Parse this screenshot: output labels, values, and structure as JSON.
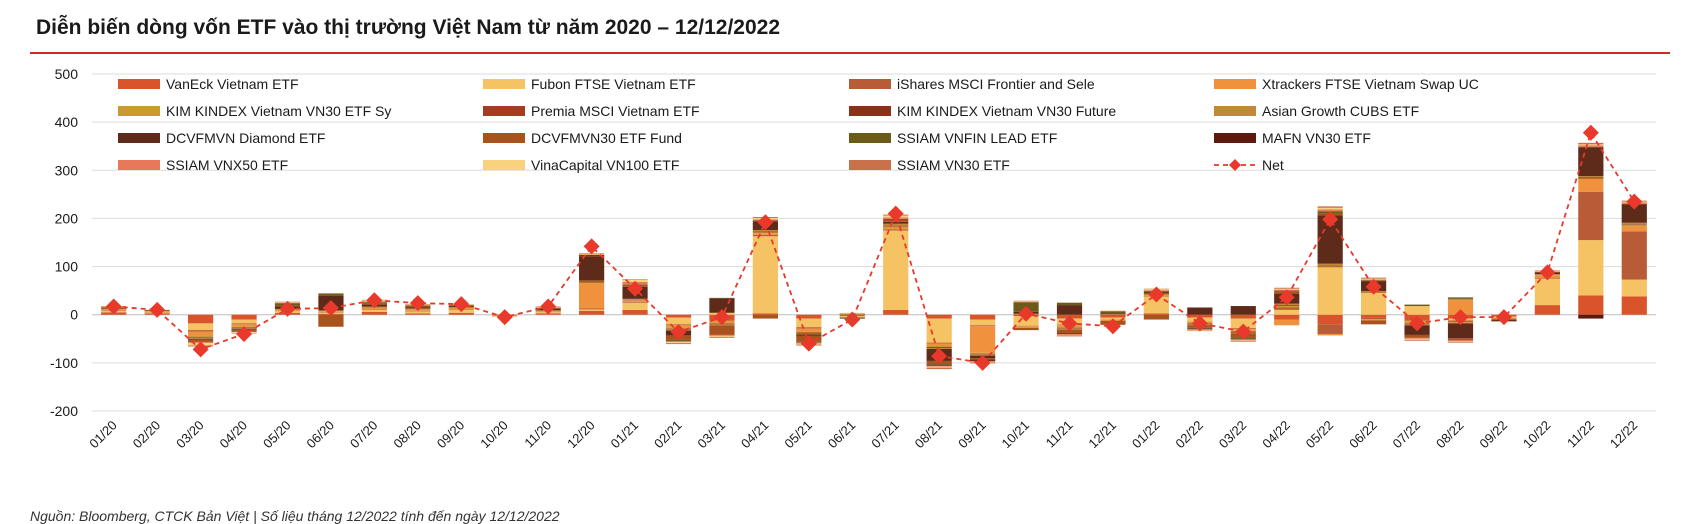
{
  "header": {
    "title": "Diễn biến dòng vốn ETF vào thị trường Việt Nam từ năm 2020 – 12/12/2022"
  },
  "footer": {
    "source": "Nguồn: Bloomberg, CTCK Bản Việt | Số liệu tháng 12/2022 tính đến ngày 12/12/2022"
  },
  "chart_data": {
    "type": "bar",
    "title": "Diễn biến dòng vốn ETF vào thị trường Việt Nam từ năm 2020 – 12/12/2022",
    "xlabel": "",
    "ylabel": "",
    "ylim": [
      -200,
      500
    ],
    "yticks": [
      500,
      400,
      300,
      200,
      100,
      0,
      -100,
      -200
    ],
    "grid": true,
    "legend_position": "top",
    "categories": [
      "01/20",
      "02/20",
      "03/20",
      "04/20",
      "05/20",
      "06/20",
      "07/20",
      "08/20",
      "09/20",
      "10/20",
      "11/20",
      "12/20",
      "01/21",
      "02/21",
      "03/21",
      "04/21",
      "05/21",
      "06/21",
      "07/21",
      "08/21",
      "09/21",
      "10/21",
      "11/21",
      "12/21",
      "01/22",
      "02/22",
      "03/22",
      "04/22",
      "05/22",
      "06/22",
      "07/22",
      "08/22",
      "09/22",
      "10/22",
      "11/22",
      "12/22"
    ],
    "series": [
      {
        "name": "VanEck Vietnam ETF",
        "color": "#d9542b",
        "values": [
          5,
          3,
          -18,
          -10,
          4,
          2,
          6,
          3,
          4,
          -2,
          3,
          8,
          10,
          -6,
          -10,
          3,
          -8,
          -3,
          10,
          -8,
          -10,
          -3,
          -8,
          -6,
          3,
          -6,
          -8,
          -10,
          -20,
          -5,
          -10,
          -8,
          -4,
          20,
          40,
          38
        ]
      },
      {
        "name": "Fubon FTSE Vietnam ETF",
        "color": "#f5c264",
        "values": [
          3,
          2,
          -14,
          -8,
          3,
          2,
          4,
          4,
          6,
          -1,
          2,
          3,
          15,
          -14,
          4,
          160,
          -18,
          -2,
          165,
          -50,
          -12,
          -20,
          -12,
          -4,
          35,
          -8,
          -20,
          10,
          98,
          45,
          18,
          -4,
          -3,
          55,
          115,
          35
        ]
      },
      {
        "name": "iShares MSCI Frontier and Sele",
        "color": "#b85c37",
        "values": [
          1,
          1,
          -3,
          -2,
          0,
          1,
          1,
          1,
          1,
          0,
          0,
          2,
          2,
          -2,
          -2,
          3,
          -3,
          0,
          2,
          -2,
          -2,
          -1,
          -1,
          0,
          1,
          0,
          -2,
          5,
          -20,
          -4,
          -2,
          -3,
          -1,
          2,
          100,
          100
        ]
      },
      {
        "name": "Xtrackers FTSE Vietnam Swap UC",
        "color": "#f0923d",
        "values": [
          2,
          1,
          -8,
          -4,
          2,
          1,
          3,
          2,
          2,
          -1,
          2,
          52,
          2,
          -4,
          -4,
          3,
          -6,
          -1,
          3,
          -4,
          -55,
          -2,
          -3,
          -2,
          1,
          -2,
          -3,
          -12,
          -3,
          -3,
          -4,
          30,
          -2,
          5,
          25,
          10
        ]
      },
      {
        "name": "KIM KINDEX Vietnam VN30 ETF Sy",
        "color": "#c99a2e",
        "values": [
          1,
          1,
          -3,
          -2,
          1,
          1,
          1,
          1,
          1,
          0,
          1,
          2,
          1,
          -3,
          -2,
          2,
          -2,
          0,
          3,
          -3,
          -2,
          -1,
          -3,
          -1,
          1,
          -2,
          -2,
          3,
          2,
          1,
          -2,
          -2,
          0,
          1,
          3,
          3
        ]
      },
      {
        "name": "Premia MSCI Vietnam ETF",
        "color": "#a83a1f",
        "values": [
          0,
          0,
          -1,
          -1,
          0,
          0,
          0,
          0,
          0,
          0,
          0,
          1,
          1,
          -1,
          -1,
          1,
          -1,
          0,
          1,
          -1,
          -1,
          0,
          -1,
          0,
          0,
          -1,
          -1,
          1,
          1,
          1,
          -1,
          -1,
          0,
          0,
          1,
          1
        ]
      },
      {
        "name": "KIM KINDEX Vietnam VN30 Future",
        "color": "#8c3018",
        "values": [
          0,
          0,
          -1,
          -1,
          0,
          0,
          0,
          0,
          0,
          0,
          0,
          1,
          0,
          -1,
          -1,
          1,
          -1,
          0,
          1,
          -1,
          -1,
          0,
          -1,
          0,
          0,
          -1,
          -1,
          1,
          1,
          0,
          -1,
          -1,
          0,
          0,
          1,
          1
        ]
      },
      {
        "name": "Asian Growth CUBS ETF",
        "color": "#c08838",
        "values": [
          1,
          0,
          -2,
          -1,
          2,
          2,
          2,
          2,
          2,
          0,
          1,
          2,
          2,
          -2,
          -2,
          3,
          -2,
          1,
          4,
          -2,
          -2,
          2,
          -2,
          1,
          3,
          -2,
          -2,
          3,
          4,
          2,
          -2,
          3,
          0,
          1,
          3,
          3
        ]
      },
      {
        "name": "DCVFMVN Diamond ETF",
        "color": "#5e2a1a",
        "values": [
          1,
          1,
          -2,
          -2,
          5,
          30,
          4,
          2,
          2,
          0,
          3,
          50,
          25,
          -10,
          30,
          18,
          -3,
          -2,
          4,
          -25,
          -5,
          4,
          20,
          2,
          3,
          15,
          18,
          20,
          100,
          20,
          -20,
          -30,
          -3,
          4,
          60,
          38
        ]
      },
      {
        "name": "DCVFMVN30 ETF Fund",
        "color": "#a8521e",
        "values": [
          1,
          1,
          -3,
          -2,
          2,
          -25,
          2,
          2,
          1,
          0,
          1,
          1,
          4,
          -8,
          -20,
          -8,
          -12,
          1,
          4,
          -5,
          -2,
          -5,
          -8,
          -8,
          -10,
          -5,
          -8,
          5,
          4,
          -8,
          -5,
          -3,
          -1,
          1,
          1,
          1
        ]
      },
      {
        "name": "SSIAM VNFIN LEAD ETF",
        "color": "#6b5a1a",
        "values": [
          0,
          0,
          -1,
          -1,
          5,
          5,
          3,
          2,
          1,
          0,
          1,
          1,
          1,
          -3,
          1,
          1,
          -1,
          0,
          1,
          -3,
          -2,
          20,
          5,
          4,
          2,
          -2,
          -3,
          1,
          4,
          2,
          3,
          3,
          0,
          0,
          0,
          0
        ]
      },
      {
        "name": "MAFN VN30 ETF",
        "color": "#5a1a0e",
        "values": [
          0,
          0,
          -1,
          -1,
          0,
          0,
          0,
          0,
          0,
          0,
          0,
          1,
          0,
          -1,
          0,
          1,
          -1,
          0,
          1,
          -2,
          -2,
          0,
          -1,
          0,
          0,
          -1,
          -1,
          1,
          1,
          0,
          -1,
          -1,
          0,
          0,
          -8,
          0
        ]
      },
      {
        "name": "SSIAM VNX50 ETF",
        "color": "#e8785a",
        "values": [
          1,
          0,
          -2,
          -1,
          1,
          0,
          2,
          1,
          1,
          0,
          1,
          1,
          5,
          -2,
          -2,
          2,
          -2,
          1,
          3,
          -2,
          -2,
          1,
          -2,
          1,
          2,
          -2,
          -2,
          2,
          4,
          2,
          -2,
          -2,
          0,
          1,
          3,
          3
        ]
      },
      {
        "name": "VinaCapital VN100 ETF",
        "color": "#f8d27e",
        "values": [
          1,
          0,
          -5,
          -2,
          1,
          1,
          2,
          1,
          1,
          0,
          1,
          2,
          5,
          -2,
          -2,
          3,
          -2,
          1,
          4,
          -2,
          -1,
          1,
          -1,
          1,
          2,
          -1,
          -1,
          2,
          3,
          2,
          -2,
          -1,
          0,
          1,
          2,
          2
        ]
      },
      {
        "name": "SSIAM VN30 ETF",
        "color": "#c9714a",
        "values": [
          1,
          0,
          -2,
          -1,
          1,
          0,
          1,
          1,
          0,
          0,
          1,
          1,
          1,
          -2,
          -2,
          2,
          -2,
          0,
          2,
          -3,
          -2,
          1,
          -2,
          0,
          1,
          -1,
          -2,
          2,
          3,
          2,
          -2,
          -2,
          0,
          1,
          3,
          2
        ]
      },
      {
        "name": "Net",
        "color": "#e8392a",
        "type": "line",
        "values": [
          17,
          10,
          -72,
          -40,
          12,
          14,
          30,
          24,
          22,
          -5,
          17,
          142,
          54,
          -36,
          -5,
          192,
          -60,
          -10,
          210,
          -86,
          -100,
          2,
          -18,
          -24,
          42,
          -18,
          -35,
          36,
          198,
          58,
          -18,
          -5,
          -5,
          88,
          378,
          235
        ]
      }
    ]
  }
}
